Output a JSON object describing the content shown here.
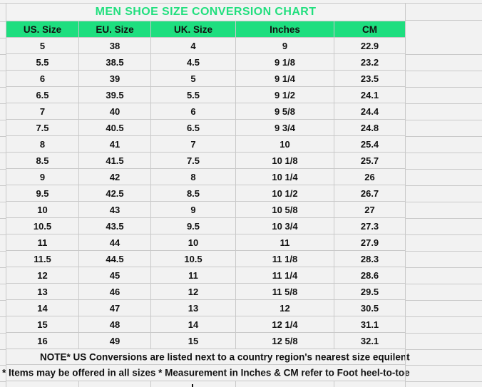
{
  "chart_data": {
    "type": "table",
    "title": "MEN SHOE SIZE CONVERSION CHART",
    "columns": [
      "US. Size",
      "EU. Size",
      "UK. Size",
      "Inches",
      "CM"
    ],
    "rows": [
      [
        "5",
        "38",
        "4",
        "9",
        "22.9"
      ],
      [
        "5.5",
        "38.5",
        "4.5",
        "9 1/8",
        "23.2"
      ],
      [
        "6",
        "39",
        "5",
        "9 1/4",
        "23.5"
      ],
      [
        "6.5",
        "39.5",
        "5.5",
        "9 1/2",
        "24.1"
      ],
      [
        "7",
        "40",
        "6",
        "9 5/8",
        "24.4"
      ],
      [
        "7.5",
        "40.5",
        "6.5",
        "9 3/4",
        "24.8"
      ],
      [
        "8",
        "41",
        "7",
        "10",
        "25.4"
      ],
      [
        "8.5",
        "41.5",
        "7.5",
        "10 1/8",
        "25.7"
      ],
      [
        "9",
        "42",
        "8",
        "10 1/4",
        "26"
      ],
      [
        "9.5",
        "42.5",
        "8.5",
        "10 1/2",
        "26.7"
      ],
      [
        "10",
        "43",
        "9",
        "10 5/8",
        "27"
      ],
      [
        "10.5",
        "43.5",
        "9.5",
        "10 3/4",
        "27.3"
      ],
      [
        "11",
        "44",
        "10",
        "11",
        "27.9"
      ],
      [
        "11.5",
        "44.5",
        "10.5",
        "11 1/8",
        "28.3"
      ],
      [
        "12",
        "45",
        "11",
        "11 1/4",
        "28.6"
      ],
      [
        "13",
        "46",
        "12",
        "11 5/8",
        "29.5"
      ],
      [
        "14",
        "47",
        "13",
        "12",
        "30.5"
      ],
      [
        "15",
        "48",
        "14",
        "12 1/4",
        "31.1"
      ],
      [
        "16",
        "49",
        "15",
        "12 5/8",
        "32.1"
      ]
    ],
    "notes": [
      "NOTE* US Conversions are listed next to a country region's nearest size equilent",
      "* Items may be offered in all sizes * Measurement in Inches & CM refer to Foot heel-to-toe"
    ]
  },
  "colors": {
    "header_green": "#1EDE7F",
    "title_green": "#21DF7E",
    "grid_line": "#C9C9C9",
    "cell_bg": "#F2F2F2",
    "text": "#111111"
  }
}
